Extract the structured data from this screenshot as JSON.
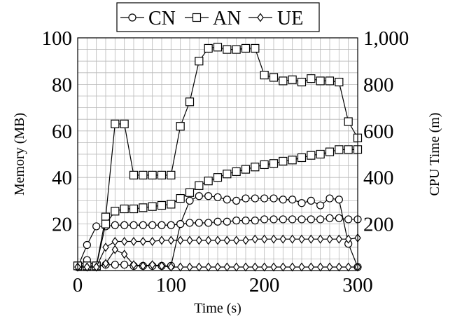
{
  "chart_data": {
    "type": "line",
    "xlabel": "Time (s)",
    "ylabel_left": "Memory (MB)",
    "ylabel_right": "CPU Time (m)",
    "xlim": [
      0,
      300
    ],
    "ylim_left": [
      0,
      100
    ],
    "ylim_right": [
      0,
      1000
    ],
    "x_ticks": [
      {
        "value": 0,
        "label": "0"
      },
      {
        "value": 100,
        "label": "100"
      },
      {
        "value": 200,
        "label": "200"
      },
      {
        "value": 300,
        "label": "300"
      }
    ],
    "y_left_ticks": [
      {
        "value": 20,
        "label": "20"
      },
      {
        "value": 40,
        "label": "40"
      },
      {
        "value": 60,
        "label": "60"
      },
      {
        "value": 80,
        "label": "80"
      },
      {
        "value": 100,
        "label": "100"
      }
    ],
    "y_right_ticks": [
      {
        "value": 200,
        "label": "200"
      },
      {
        "value": 400,
        "label": "400"
      },
      {
        "value": 600,
        "label": "600"
      },
      {
        "value": 800,
        "label": "800"
      },
      {
        "value": 1000,
        "label": "1,000"
      }
    ],
    "grid": true,
    "legend_position": "top-center",
    "legend": [
      {
        "name": "CN",
        "marker": "circle"
      },
      {
        "name": "AN",
        "marker": "square"
      },
      {
        "name": "UE",
        "marker": "diamond"
      }
    ],
    "series": [
      {
        "name": "CN",
        "marker": "circle",
        "axis": "left",
        "x": [
          0,
          10,
          20,
          30,
          40,
          50,
          60,
          70,
          80,
          90,
          100,
          110,
          120,
          130,
          140,
          150,
          160,
          170,
          180,
          190,
          200,
          210,
          220,
          230,
          240,
          250,
          260,
          270,
          280,
          290,
          300
        ],
        "y": [
          1.5,
          11,
          19,
          19,
          19.5,
          19.5,
          19.5,
          19.5,
          19.5,
          19.5,
          19.5,
          20,
          20.5,
          20.5,
          20.5,
          21,
          21,
          21.5,
          21.5,
          21.5,
          22,
          22,
          22,
          22,
          22,
          22,
          22,
          22.5,
          22.5,
          22,
          22
        ]
      },
      {
        "name": "CN",
        "marker": "circle",
        "axis": "left",
        "x": [
          0,
          10,
          20,
          30,
          40,
          50,
          60,
          70,
          80,
          90,
          100,
          110,
          120,
          130,
          140,
          150,
          160,
          170,
          180,
          190,
          200,
          210,
          220,
          230,
          240,
          250,
          260,
          270,
          280,
          290,
          300
        ],
        "y": [
          1.5,
          4.5,
          1.5,
          2.5,
          2.5,
          2.5,
          2,
          2,
          2,
          2,
          2,
          20,
          30,
          32,
          32,
          31.5,
          30.5,
          30,
          31,
          31,
          31,
          31,
          30.5,
          30.5,
          29,
          30,
          28,
          31,
          30.5,
          11.5,
          1.5
        ]
      },
      {
        "name": "AN",
        "marker": "square",
        "axis": "left",
        "x": [
          0,
          10,
          20,
          30,
          40,
          50,
          60,
          70,
          80,
          90,
          100,
          110,
          120,
          130,
          140,
          150,
          160,
          170,
          180,
          190,
          200,
          210,
          220,
          230,
          240,
          250,
          260,
          270,
          280,
          290,
          300
        ],
        "y": [
          2,
          2,
          2,
          23,
          63,
          63,
          41,
          41,
          41,
          41,
          41,
          62,
          72.5,
          90,
          95.5,
          96,
          95,
          95,
          95.5,
          95.5,
          84,
          83,
          81.5,
          82,
          81,
          82.5,
          81.5,
          81.5,
          81,
          64,
          57
        ]
      },
      {
        "name": "AN",
        "marker": "square",
        "axis": "left",
        "x": [
          0,
          10,
          20,
          30,
          40,
          50,
          60,
          70,
          80,
          90,
          100,
          110,
          120,
          130,
          140,
          150,
          160,
          170,
          180,
          190,
          200,
          210,
          220,
          230,
          240,
          250,
          260,
          270,
          280,
          290,
          300
        ],
        "y": [
          2,
          2,
          2,
          20,
          25.5,
          26.5,
          26.5,
          27,
          27.5,
          28,
          28.5,
          31,
          33.5,
          36.5,
          38.5,
          40,
          41.5,
          42.5,
          43.5,
          44.5,
          45.5,
          46,
          47,
          47.5,
          48.5,
          49.5,
          50,
          51,
          52,
          52,
          52
        ]
      },
      {
        "name": "UE",
        "marker": "diamond",
        "axis": "left",
        "x": [
          0,
          10,
          20,
          30,
          40,
          50,
          60,
          70,
          80,
          90,
          100,
          110,
          120,
          130,
          140,
          150,
          160,
          170,
          180,
          190,
          200,
          210,
          220,
          230,
          240,
          250,
          260,
          270,
          280,
          290,
          300
        ],
        "y": [
          1.5,
          1.5,
          1.5,
          10,
          12.5,
          12.5,
          12.5,
          12.5,
          12.5,
          13,
          13,
          13,
          13,
          13,
          13,
          13,
          13,
          13,
          13,
          13.5,
          13.5,
          13.5,
          13.5,
          13.5,
          13.5,
          13.5,
          13.5,
          13.5,
          13.5,
          13.5,
          14
        ]
      },
      {
        "name": "UE",
        "marker": "diamond",
        "axis": "left",
        "x": [
          0,
          10,
          20,
          30,
          40,
          50,
          60,
          70,
          80,
          90,
          100,
          110,
          120,
          130,
          140,
          150,
          160,
          170,
          180,
          190,
          200,
          210,
          220,
          230,
          240,
          250,
          260,
          270,
          280,
          290,
          300
        ],
        "y": [
          1.5,
          1.5,
          1.5,
          3,
          9,
          7,
          2.5,
          2,
          2.5,
          2,
          1.5,
          1.5,
          1.5,
          1.5,
          1.5,
          1.5,
          1.5,
          1.5,
          1.5,
          1.5,
          1.5,
          1.5,
          1.5,
          1.5,
          1.5,
          1.5,
          1.5,
          1.5,
          1.5,
          1.5,
          1.5
        ]
      }
    ]
  }
}
